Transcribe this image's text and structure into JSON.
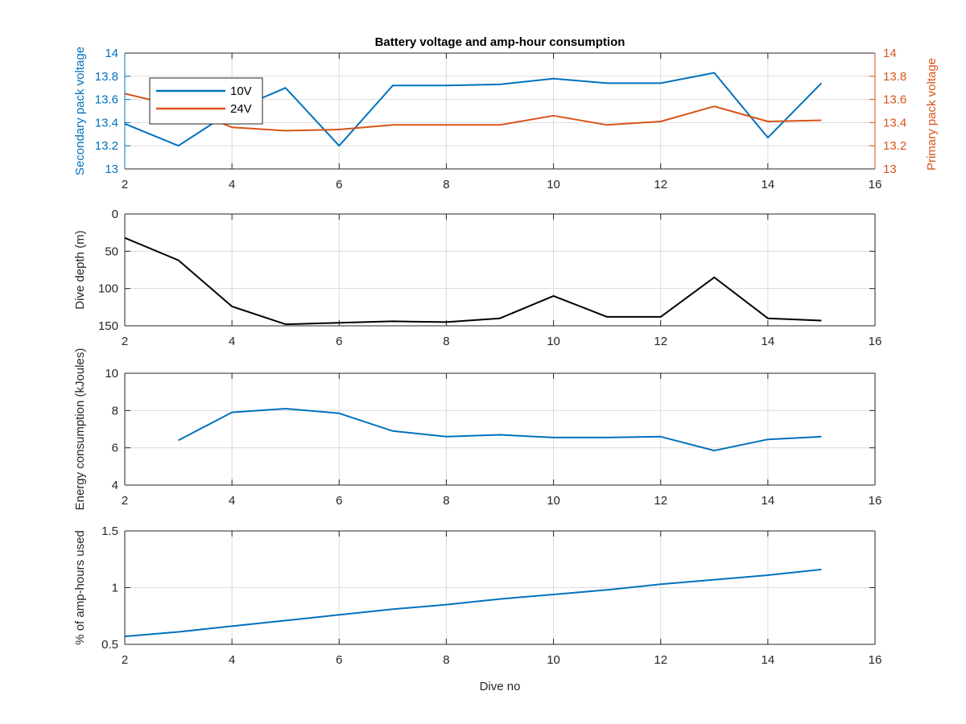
{
  "figure": {
    "title": "Battery voltage and amp-hour consumption",
    "xlabel": "Dive no"
  },
  "chart_data": [
    {
      "type": "line",
      "xlim": [
        2,
        16
      ],
      "xticks": [
        2,
        4,
        6,
        8,
        10,
        12,
        14,
        16
      ],
      "ylabel_left": "Secondary pack voltage",
      "ylabel_right": "Primary pack voltage",
      "ylim_left": [
        13,
        14
      ],
      "yticks_left": [
        "13",
        "13.2",
        "13.4",
        "13.6",
        "13.8",
        "14"
      ],
      "ylim_right": [
        13,
        14
      ],
      "yticks_right": [
        "13",
        "13.2",
        "13.4",
        "13.6",
        "13.8",
        "14"
      ],
      "grid": true,
      "legend_position": "top-left",
      "series": [
        {
          "name": "10V",
          "axis": "left",
          "color": "#0072BD",
          "x": [
            2,
            3,
            4,
            5,
            6,
            7,
            8,
            9,
            10,
            11,
            12,
            13,
            14,
            15
          ],
          "values": [
            13.39,
            13.2,
            13.5,
            13.7,
            13.2,
            13.72,
            13.72,
            13.73,
            13.78,
            13.74,
            13.74,
            13.83,
            13.27,
            13.74
          ]
        },
        {
          "name": "24V",
          "axis": "right",
          "color": "#D95319",
          "x": [
            2,
            3,
            4,
            5,
            6,
            7,
            8,
            9,
            10,
            11,
            12,
            13,
            14,
            15
          ],
          "values": [
            13.65,
            13.54,
            13.36,
            13.33,
            13.34,
            13.38,
            13.38,
            13.38,
            13.46,
            13.38,
            13.41,
            13.54,
            13.41,
            13.42
          ]
        }
      ]
    },
    {
      "type": "line",
      "xlim": [
        2,
        16
      ],
      "xticks": [
        2,
        4,
        6,
        8,
        10,
        12,
        14,
        16
      ],
      "ylabel": "Dive depth (m)",
      "ylim": [
        0,
        150
      ],
      "y_reversed": true,
      "yticks": [
        "0",
        "50",
        "100",
        "150"
      ],
      "grid": true,
      "series": [
        {
          "color": "#000000",
          "x": [
            2,
            3,
            4,
            5,
            6,
            7,
            8,
            9,
            10,
            11,
            12,
            13,
            14,
            15
          ],
          "values": [
            32,
            62,
            124,
            148,
            146,
            144,
            145,
            140,
            110,
            138,
            138,
            85,
            140,
            143
          ]
        }
      ]
    },
    {
      "type": "line",
      "xlim": [
        2,
        16
      ],
      "xticks": [
        2,
        4,
        6,
        8,
        10,
        12,
        14,
        16
      ],
      "ylabel": "Energy consumption (kJoules)",
      "ylim": [
        4,
        10
      ],
      "yticks": [
        "4",
        "6",
        "8",
        "10"
      ],
      "grid": true,
      "series": [
        {
          "color": "#0072BD",
          "x": [
            3,
            4,
            5,
            6,
            7,
            8,
            9,
            10,
            11,
            12,
            13,
            14,
            15
          ],
          "values": [
            6.4,
            7.9,
            8.1,
            7.85,
            6.9,
            6.6,
            6.7,
            6.55,
            6.55,
            6.6,
            5.85,
            6.45,
            6.6
          ]
        }
      ]
    },
    {
      "type": "line",
      "xlim": [
        2,
        16
      ],
      "xticks": [
        2,
        4,
        6,
        8,
        10,
        12,
        14,
        16
      ],
      "ylabel": "% of amp-hours used",
      "ylim": [
        0.5,
        1.5
      ],
      "yticks": [
        "0.5",
        "1",
        "1.5"
      ],
      "grid": true,
      "series": [
        {
          "color": "#0072BD",
          "x": [
            2,
            3,
            4,
            5,
            6,
            7,
            8,
            9,
            10,
            11,
            12,
            13,
            14,
            15
          ],
          "values": [
            0.57,
            0.61,
            0.66,
            0.71,
            0.76,
            0.81,
            0.85,
            0.9,
            0.94,
            0.98,
            1.03,
            1.07,
            1.11,
            1.16
          ]
        }
      ]
    }
  ]
}
